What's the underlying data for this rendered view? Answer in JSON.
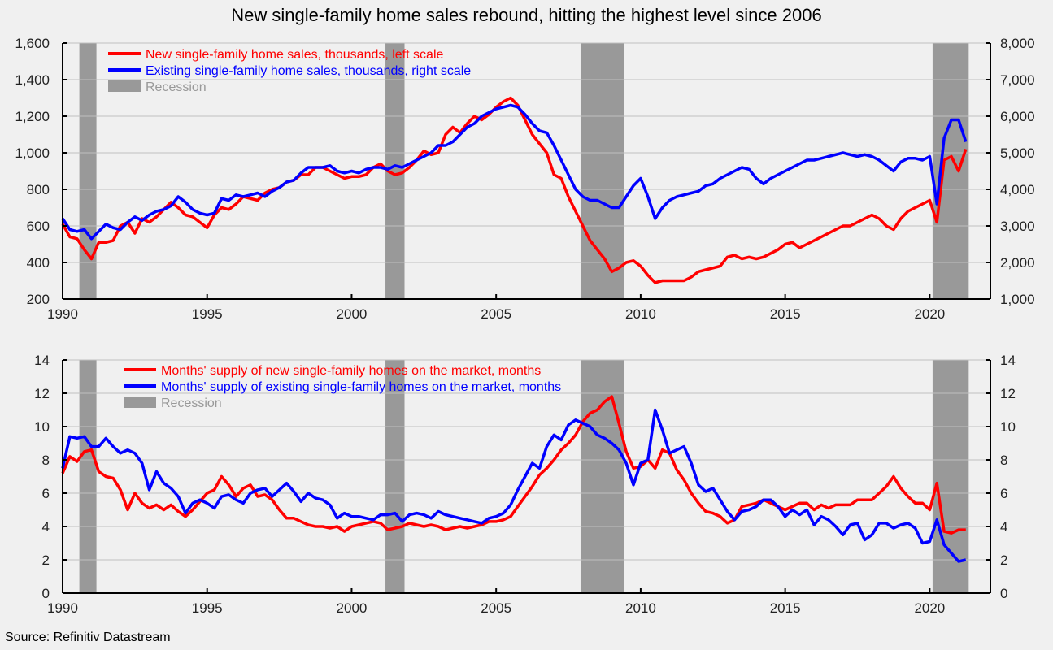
{
  "title": "New single-family home sales rebound, hitting the highest level since 2006",
  "source": "Source: Refinitiv Datastream",
  "colors": {
    "new": "#ff0000",
    "existing": "#0000ff",
    "recession": "#999999",
    "recession_text": "#999999",
    "grid": "#c0c0c0",
    "background": "#f0f0f0"
  },
  "chart_data": [
    {
      "type": "line",
      "title": "New single-family home sales rebound, hitting the highest level since 2006",
      "xlabel": "",
      "ylabel": "",
      "x_start": 1990.0,
      "x_step": 0.25,
      "xlim": [
        1990,
        2022.1
      ],
      "x_ticks": [
        1990,
        1995,
        2000,
        2005,
        2010,
        2015,
        2020
      ],
      "x_tick_labels": [
        "1990",
        "1995",
        "2000",
        "2005",
        "2010",
        "2015",
        "2020"
      ],
      "ylim_left": [
        200,
        1600
      ],
      "y_ticks_left": [
        200,
        400,
        600,
        800,
        1000,
        1200,
        1400,
        1600
      ],
      "y_tick_labels_left": [
        "200",
        "400",
        "600",
        "800",
        "1,000",
        "1,200",
        "1,400",
        "1,600"
      ],
      "ylim_right": [
        1000,
        8000
      ],
      "y_ticks_right": [
        1000,
        2000,
        3000,
        4000,
        5000,
        6000,
        7000,
        8000
      ],
      "y_tick_labels_right": [
        "1,000",
        "2,000",
        "3,000",
        "4,000",
        "5,000",
        "6,000",
        "7,000",
        "8,000"
      ],
      "grid": true,
      "legend_position": "top-left",
      "recessions": [
        [
          1990.58,
          1991.17
        ],
        [
          2001.17,
          2001.83
        ],
        [
          2007.92,
          2009.42
        ],
        [
          2020.1,
          2021.35
        ]
      ],
      "legend": [
        {
          "label": "New single-family home sales, thousands, left scale",
          "kind": "line",
          "color": "#ff0000"
        },
        {
          "label": "Existing single-family home sales, thousands, right scale",
          "kind": "line",
          "color": "#0000ff"
        },
        {
          "label": "Recession",
          "kind": "box",
          "color": "#999999"
        }
      ],
      "series": [
        {
          "name": "New single-family home sales, thousands, left scale",
          "axis": "left",
          "color": "#ff0000",
          "values": [
            610,
            540,
            530,
            470,
            420,
            510,
            510,
            520,
            600,
            620,
            560,
            640,
            620,
            650,
            690,
            730,
            700,
            660,
            650,
            620,
            590,
            660,
            700,
            690,
            720,
            760,
            750,
            740,
            780,
            800,
            810,
            840,
            850,
            880,
            880,
            920,
            920,
            900,
            880,
            860,
            870,
            870,
            880,
            920,
            940,
            900,
            880,
            890,
            920,
            960,
            1010,
            990,
            1000,
            1100,
            1140,
            1110,
            1160,
            1200,
            1180,
            1210,
            1250,
            1280,
            1300,
            1260,
            1180,
            1100,
            1050,
            1000,
            880,
            860,
            760,
            680,
            600,
            520,
            470,
            420,
            350,
            370,
            400,
            410,
            380,
            330,
            290,
            300,
            300,
            300,
            300,
            320,
            350,
            360,
            370,
            380,
            430,
            440,
            420,
            430,
            420,
            430,
            450,
            470,
            500,
            510,
            480,
            500,
            520,
            540,
            560,
            580,
            600,
            600,
            620,
            640,
            660,
            640,
            600,
            580,
            640,
            680,
            700,
            720,
            740,
            620,
            960,
            980,
            900,
            1020
          ]
        },
        {
          "name": "Existing single-family home sales, thousands, right scale",
          "axis": "right",
          "color": "#0000ff",
          "values": [
            3200,
            2900,
            2850,
            2900,
            2650,
            2850,
            3050,
            2950,
            2900,
            3100,
            3250,
            3150,
            3300,
            3400,
            3450,
            3550,
            3800,
            3650,
            3450,
            3350,
            3300,
            3350,
            3750,
            3700,
            3850,
            3800,
            3850,
            3900,
            3800,
            3950,
            4050,
            4200,
            4250,
            4450,
            4600,
            4600,
            4600,
            4650,
            4500,
            4450,
            4500,
            4450,
            4550,
            4600,
            4600,
            4550,
            4650,
            4600,
            4700,
            4800,
            4900,
            5000,
            5200,
            5200,
            5300,
            5500,
            5700,
            5800,
            6000,
            6100,
            6200,
            6250,
            6300,
            6250,
            6050,
            5800,
            5600,
            5550,
            5200,
            4800,
            4400,
            4000,
            3800,
            3700,
            3700,
            3600,
            3500,
            3500,
            3800,
            4100,
            4300,
            3800,
            3200,
            3500,
            3700,
            3800,
            3850,
            3900,
            3950,
            4100,
            4150,
            4300,
            4400,
            4500,
            4600,
            4550,
            4300,
            4150,
            4300,
            4400,
            4500,
            4600,
            4700,
            4800,
            4800,
            4850,
            4900,
            4950,
            5000,
            4950,
            4900,
            4950,
            4900,
            4800,
            4650,
            4500,
            4750,
            4850,
            4850,
            4800,
            4900,
            3600,
            5400,
            5900,
            5900,
            5300
          ]
        }
      ]
    },
    {
      "type": "line",
      "title": "",
      "xlabel": "",
      "ylabel": "",
      "x_start": 1990.0,
      "x_step": 0.25,
      "xlim": [
        1990,
        2022.1
      ],
      "x_ticks": [
        1990,
        1995,
        2000,
        2005,
        2010,
        2015,
        2020
      ],
      "x_tick_labels": [
        "1990",
        "1995",
        "2000",
        "2005",
        "2010",
        "2015",
        "2020"
      ],
      "ylim_left": [
        0,
        14
      ],
      "y_ticks_left": [
        0,
        2,
        4,
        6,
        8,
        10,
        12,
        14
      ],
      "y_tick_labels_left": [
        "0",
        "2",
        "4",
        "6",
        "8",
        "10",
        "12",
        "14"
      ],
      "ylim_right": [
        0,
        14
      ],
      "y_ticks_right": [
        0,
        2,
        4,
        6,
        8,
        10,
        12,
        14
      ],
      "y_tick_labels_right": [
        "0",
        "2",
        "4",
        "6",
        "8",
        "10",
        "12",
        "14"
      ],
      "grid": true,
      "legend_position": "top-left",
      "recessions": [
        [
          1990.58,
          1991.17
        ],
        [
          2001.17,
          2001.83
        ],
        [
          2007.92,
          2009.42
        ],
        [
          2020.1,
          2021.35
        ]
      ],
      "legend": [
        {
          "label": "Months' supply of new single-family homes on the market, months",
          "kind": "line",
          "color": "#ff0000"
        },
        {
          "label": "Months' supply of existing single-family homes on the market, months",
          "kind": "line",
          "color": "#0000ff"
        },
        {
          "label": "Recession",
          "kind": "box",
          "color": "#999999"
        }
      ],
      "series": [
        {
          "name": "Months' supply of new single-family homes on the market, months",
          "axis": "left",
          "color": "#ff0000",
          "values": [
            7.2,
            8.2,
            7.9,
            8.5,
            8.6,
            7.3,
            7.0,
            6.9,
            6.2,
            5.0,
            6.0,
            5.4,
            5.1,
            5.3,
            5.0,
            5.3,
            4.9,
            4.6,
            5.0,
            5.5,
            6.0,
            6.2,
            7.0,
            6.5,
            5.8,
            6.3,
            6.5,
            5.8,
            5.9,
            5.6,
            5.0,
            4.5,
            4.5,
            4.3,
            4.1,
            4.0,
            4.0,
            3.9,
            4.0,
            3.7,
            4.0,
            4.1,
            4.2,
            4.3,
            4.2,
            3.8,
            3.9,
            4.0,
            4.2,
            4.1,
            4.0,
            4.1,
            4.0,
            3.8,
            3.9,
            4.0,
            3.9,
            4.0,
            4.1,
            4.3,
            4.3,
            4.4,
            4.6,
            5.2,
            5.8,
            6.4,
            7.1,
            7.5,
            8.0,
            8.6,
            9.0,
            9.5,
            10.3,
            10.8,
            11.0,
            11.5,
            11.8,
            10.2,
            8.5,
            7.5,
            7.6,
            8.0,
            7.5,
            8.6,
            8.4,
            7.4,
            6.8,
            6.0,
            5.4,
            4.9,
            4.8,
            4.6,
            4.2,
            4.4,
            5.2,
            5.3,
            5.4,
            5.6,
            5.4,
            5.2,
            5.0,
            5.2,
            5.4,
            5.4,
            5.0,
            5.3,
            5.1,
            5.3,
            5.3,
            5.3,
            5.6,
            5.6,
            5.6,
            6.0,
            6.4,
            7.0,
            6.3,
            5.8,
            5.4,
            5.4,
            5.0,
            6.6,
            3.7,
            3.6,
            3.8,
            3.8
          ]
        },
        {
          "name": "Months' supply of existing single-family homes on the market, months",
          "axis": "left",
          "color": "#0000ff",
          "values": [
            7.5,
            9.4,
            9.3,
            9.4,
            8.8,
            8.8,
            9.3,
            8.8,
            8.4,
            8.6,
            8.4,
            7.8,
            6.2,
            7.3,
            6.6,
            6.3,
            5.8,
            4.8,
            5.4,
            5.6,
            5.4,
            5.1,
            5.8,
            5.9,
            5.6,
            5.4,
            6.0,
            6.2,
            6.3,
            5.8,
            6.2,
            6.6,
            6.1,
            5.5,
            6.0,
            5.7,
            5.6,
            5.3,
            4.5,
            4.8,
            4.6,
            4.6,
            4.5,
            4.4,
            4.7,
            4.7,
            4.8,
            4.3,
            4.7,
            4.8,
            4.7,
            4.5,
            4.9,
            4.7,
            4.6,
            4.5,
            4.4,
            4.3,
            4.2,
            4.5,
            4.6,
            4.8,
            5.3,
            6.2,
            7.0,
            7.8,
            7.5,
            8.8,
            9.5,
            9.2,
            10.1,
            10.4,
            10.2,
            10.0,
            9.5,
            9.3,
            9.0,
            8.6,
            7.8,
            6.5,
            7.8,
            8.0,
            11.0,
            9.8,
            8.4,
            8.6,
            8.8,
            7.8,
            6.5,
            6.1,
            6.3,
            5.6,
            4.9,
            4.4,
            4.9,
            5.0,
            5.2,
            5.6,
            5.6,
            5.2,
            4.6,
            5.0,
            4.7,
            5.0,
            4.1,
            4.6,
            4.4,
            4.0,
            3.5,
            4.1,
            4.2,
            3.2,
            3.5,
            4.2,
            4.2,
            3.9,
            4.1,
            4.2,
            3.9,
            3.0,
            3.1,
            4.4,
            2.9,
            2.4,
            1.9,
            2.0
          ]
        }
      ]
    }
  ]
}
